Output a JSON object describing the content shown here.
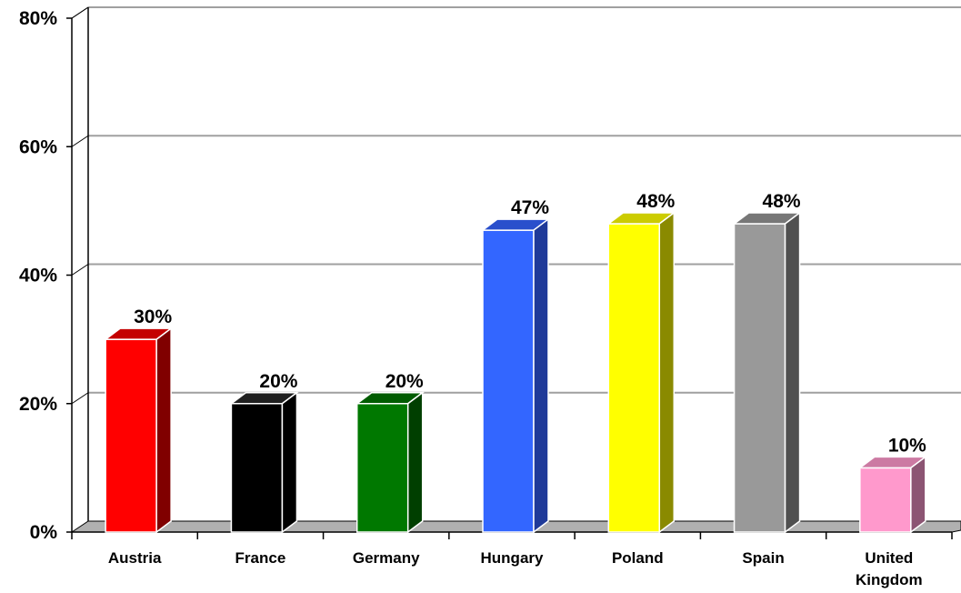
{
  "chart_data": {
    "type": "bar",
    "title": "",
    "xlabel": "",
    "ylabel": "",
    "ylim": [
      0,
      80
    ],
    "y_ticks": [
      0,
      20,
      40,
      60,
      80
    ],
    "y_tick_labels": [
      "0%",
      "20%",
      "40%",
      "60%",
      "80%"
    ],
    "grid": true,
    "categories": [
      "Austria",
      "France",
      "Germany",
      "Hungary",
      "Poland",
      "Spain",
      "United Kingdom"
    ],
    "category_lines": [
      [
        "Austria"
      ],
      [
        "France"
      ],
      [
        "Germany"
      ],
      [
        "Hungary"
      ],
      [
        "Poland"
      ],
      [
        "Spain"
      ],
      [
        "United",
        "Kingdom"
      ]
    ],
    "values": [
      30,
      20,
      20,
      47,
      48,
      48,
      10
    ],
    "data_labels": [
      "30%",
      "20%",
      "20%",
      "47%",
      "48%",
      "48%",
      "10%"
    ],
    "bar_colors": [
      {
        "front": "#ff0000",
        "top": "#c40000",
        "side": "#800000"
      },
      {
        "front": "#000000",
        "top": "#202020",
        "side": "#000000"
      },
      {
        "front": "#007800",
        "top": "#005c00",
        "side": "#003f00"
      },
      {
        "front": "#3366ff",
        "top": "#2a4fcc",
        "side": "#1f3a99"
      },
      {
        "front": "#ffff00",
        "top": "#cccc00",
        "side": "#8a8a00"
      },
      {
        "front": "#999999",
        "top": "#777777",
        "side": "#505050"
      },
      {
        "front": "#ff99cc",
        "top": "#cc7aa3",
        "side": "#8c5573"
      }
    ],
    "floor_color": "#b0b0b0",
    "grid_color": "#a0a0a0",
    "axis_color": "#000000"
  }
}
